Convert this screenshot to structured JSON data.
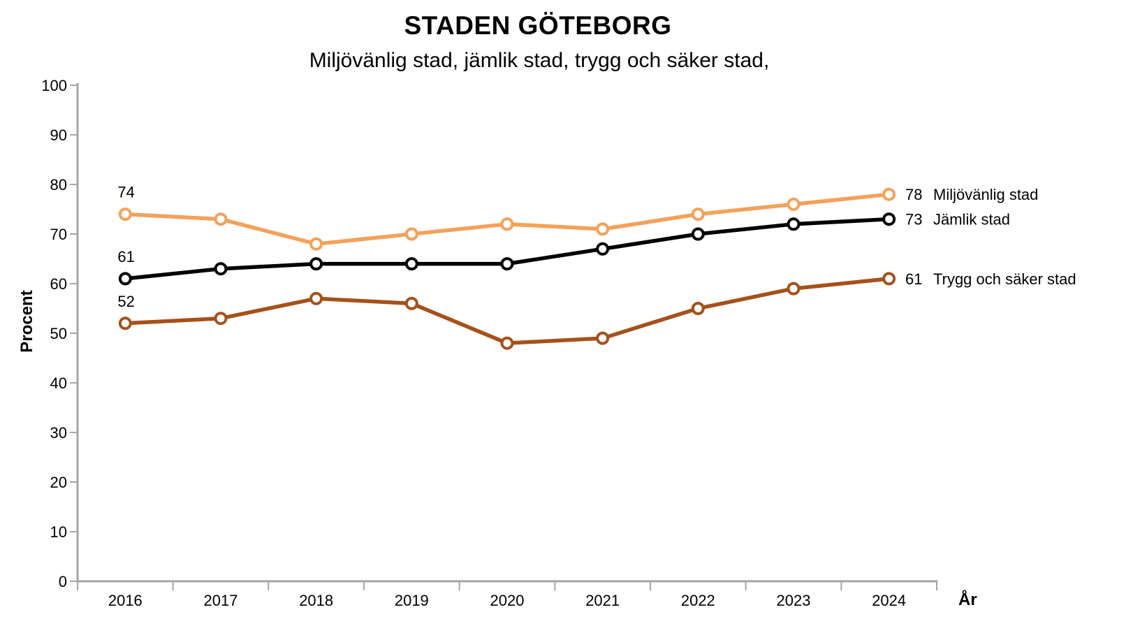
{
  "chart_data": {
    "type": "line",
    "title": "STADEN GÖTEBORG",
    "subtitle": "Miljövänlig stad, jämlik stad, trygg och säker stad,",
    "xlabel": "År",
    "ylabel": "Procent",
    "categories": [
      "2016",
      "2017",
      "2018",
      "2019",
      "2020",
      "2021",
      "2022",
      "2023",
      "2024"
    ],
    "y_ticks": [
      0,
      10,
      20,
      30,
      40,
      50,
      60,
      70,
      80,
      90,
      100
    ],
    "ylim": [
      0,
      100
    ],
    "grid": false,
    "legend_position": "end-of-line-labels",
    "axis_color": "#A6A6A6",
    "text_color": "#000000",
    "marker_style": "open-circle-white-fill",
    "series": [
      {
        "name": "Miljövänlig stad",
        "color": "#F4A159",
        "values": [
          74,
          73,
          68,
          70,
          72,
          71,
          74,
          76,
          78
        ],
        "first_value_label": "74",
        "end_value_label": "78"
      },
      {
        "name": "Jämlik stad",
        "color": "#000000",
        "values": [
          61,
          63,
          64,
          64,
          64,
          67,
          70,
          72,
          73
        ],
        "first_value_label": "61",
        "end_value_label": "73"
      },
      {
        "name": "Trygg och säker stad",
        "color": "#A5511A",
        "values": [
          52,
          53,
          57,
          56,
          48,
          49,
          55,
          59,
          61
        ],
        "first_value_label": "52",
        "end_value_label": "61"
      }
    ]
  }
}
